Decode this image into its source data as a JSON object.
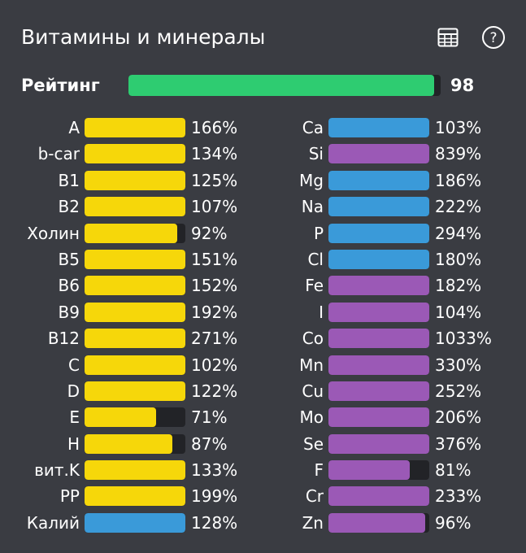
{
  "header": {
    "title": "Витамины и минералы",
    "table_icon": "table-icon",
    "help_icon": "help-icon"
  },
  "rating": {
    "label": "Рейтинг",
    "value": "98",
    "percent": 98,
    "color": "#2ecc71"
  },
  "colors": {
    "yellow": "#f6d70a",
    "blue": "#3a9ad9",
    "purple": "#9b59b6",
    "track": "#222327"
  },
  "left_column": [
    {
      "label": "A",
      "value": "166%",
      "percent": 166,
      "color": "yellow"
    },
    {
      "label": "b-car",
      "value": "134%",
      "percent": 134,
      "color": "yellow"
    },
    {
      "label": "B1",
      "value": "125%",
      "percent": 125,
      "color": "yellow"
    },
    {
      "label": "B2",
      "value": "107%",
      "percent": 107,
      "color": "yellow"
    },
    {
      "label": "Холин",
      "value": "92%",
      "percent": 92,
      "color": "yellow"
    },
    {
      "label": "B5",
      "value": "151%",
      "percent": 151,
      "color": "yellow"
    },
    {
      "label": "B6",
      "value": "152%",
      "percent": 152,
      "color": "yellow"
    },
    {
      "label": "B9",
      "value": "192%",
      "percent": 192,
      "color": "yellow"
    },
    {
      "label": "B12",
      "value": "271%",
      "percent": 271,
      "color": "yellow"
    },
    {
      "label": "C",
      "value": "102%",
      "percent": 102,
      "color": "yellow"
    },
    {
      "label": "D",
      "value": "122%",
      "percent": 122,
      "color": "yellow"
    },
    {
      "label": "E",
      "value": "71%",
      "percent": 71,
      "color": "yellow"
    },
    {
      "label": "H",
      "value": "87%",
      "percent": 87,
      "color": "yellow"
    },
    {
      "label": "вит.K",
      "value": "133%",
      "percent": 133,
      "color": "yellow"
    },
    {
      "label": "PP",
      "value": "199%",
      "percent": 199,
      "color": "yellow"
    },
    {
      "label": "Калий",
      "value": "128%",
      "percent": 128,
      "color": "blue"
    }
  ],
  "right_column": [
    {
      "label": "Ca",
      "value": "103%",
      "percent": 103,
      "color": "blue"
    },
    {
      "label": "Si",
      "value": "839%",
      "percent": 839,
      "color": "purple"
    },
    {
      "label": "Mg",
      "value": "186%",
      "percent": 186,
      "color": "blue"
    },
    {
      "label": "Na",
      "value": "222%",
      "percent": 222,
      "color": "blue"
    },
    {
      "label": "P",
      "value": "294%",
      "percent": 294,
      "color": "blue"
    },
    {
      "label": "Cl",
      "value": "180%",
      "percent": 180,
      "color": "blue"
    },
    {
      "label": "Fe",
      "value": "182%",
      "percent": 182,
      "color": "purple"
    },
    {
      "label": "I",
      "value": "104%",
      "percent": 104,
      "color": "purple"
    },
    {
      "label": "Co",
      "value": "1033%",
      "percent": 1033,
      "color": "purple"
    },
    {
      "label": "Mn",
      "value": "330%",
      "percent": 330,
      "color": "purple"
    },
    {
      "label": "Cu",
      "value": "252%",
      "percent": 252,
      "color": "purple"
    },
    {
      "label": "Mo",
      "value": "206%",
      "percent": 206,
      "color": "purple"
    },
    {
      "label": "Se",
      "value": "376%",
      "percent": 376,
      "color": "purple"
    },
    {
      "label": "F",
      "value": "81%",
      "percent": 81,
      "color": "purple"
    },
    {
      "label": "Cr",
      "value": "233%",
      "percent": 233,
      "color": "purple"
    },
    {
      "label": "Zn",
      "value": "96%",
      "percent": 96,
      "color": "purple"
    }
  ]
}
